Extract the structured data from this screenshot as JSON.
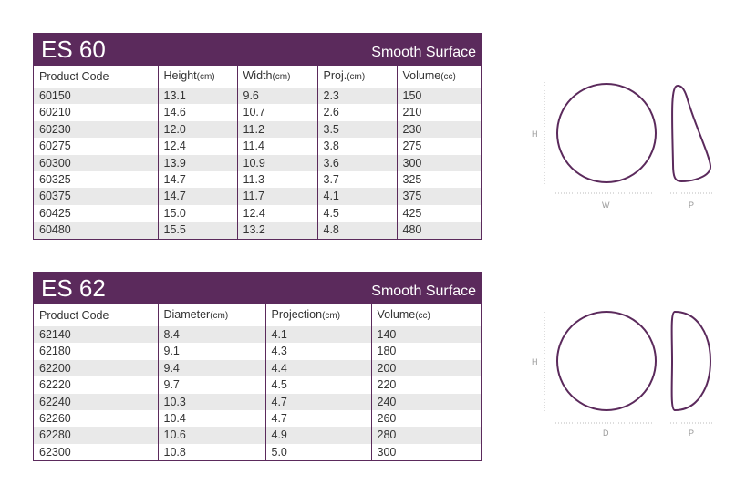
{
  "es60": {
    "model": "ES 60",
    "surface": "Smooth Surface",
    "headers": [
      {
        "main": "Product Code",
        "unit": ""
      },
      {
        "main": "Height",
        "unit": "(cm)"
      },
      {
        "main": "Width",
        "unit": "(cm)"
      },
      {
        "main": "Proj.",
        "unit": "(cm)"
      },
      {
        "main": "Volume",
        "unit": "(cc)"
      }
    ],
    "rows": [
      [
        "60150",
        "13.1",
        "9.6",
        "2.3",
        "150"
      ],
      [
        "60210",
        "14.6",
        "10.7",
        "2.6",
        "210"
      ],
      [
        "60230",
        "12.0",
        "11.2",
        "3.5",
        "230"
      ],
      [
        "60275",
        "12.4",
        "11.4",
        "3.8",
        "275"
      ],
      [
        "60300",
        "13.9",
        "10.9",
        "3.6",
        "300"
      ],
      [
        "60325",
        "14.7",
        "11.3",
        "3.7",
        "325"
      ],
      [
        "60375",
        "14.7",
        "11.7",
        "4.1",
        "375"
      ],
      [
        "60425",
        "15.0",
        "12.4",
        "4.5",
        "425"
      ],
      [
        "60480",
        "15.5",
        "13.2",
        "4.8",
        "480"
      ]
    ]
  },
  "es62": {
    "model": "ES 62",
    "surface": "Smooth Surface",
    "headers": [
      {
        "main": "Product Code",
        "unit": ""
      },
      {
        "main": "Diameter",
        "unit": "(cm)"
      },
      {
        "main": "Projection",
        "unit": "(cm)"
      },
      {
        "main": "Volume",
        "unit": "(cc)"
      }
    ],
    "rows": [
      [
        "62140",
        "8.4",
        "4.1",
        "140"
      ],
      [
        "62180",
        "9.1",
        "4.3",
        "180"
      ],
      [
        "62200",
        "9.4",
        "4.4",
        "200"
      ],
      [
        "62220",
        "9.7",
        "4.5",
        "220"
      ],
      [
        "62240",
        "10.3",
        "4.7",
        "240"
      ],
      [
        "62260",
        "10.4",
        "4.7",
        "260"
      ],
      [
        "62280",
        "10.6",
        "4.9",
        "280"
      ],
      [
        "62300",
        "10.8",
        "5.0",
        "300"
      ]
    ]
  },
  "diagram1": {
    "h": "H",
    "w": "W",
    "p": "P"
  },
  "diagram2": {
    "h": "H",
    "d": "D",
    "p": "P"
  },
  "colors": {
    "accent": "#5b2a5c",
    "stripe": "#e9e9e9",
    "dim": "#999999"
  }
}
